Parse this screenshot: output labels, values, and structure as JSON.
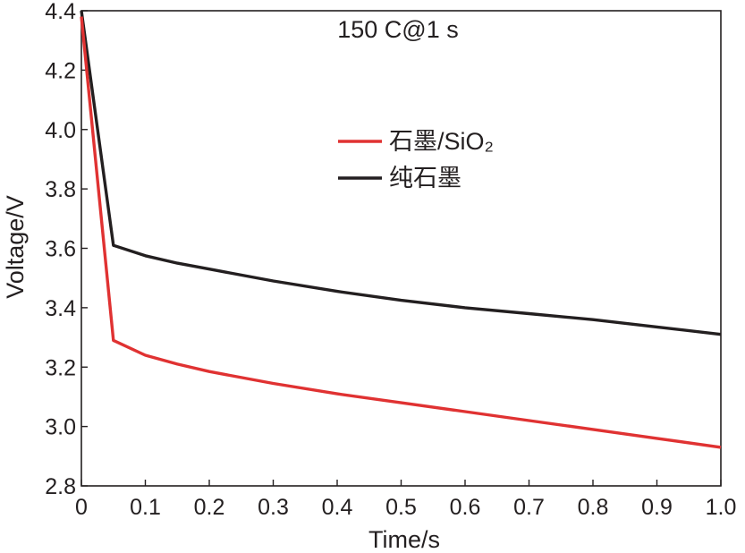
{
  "chart_data": {
    "type": "line",
    "annotation": "150 C@1 s",
    "xlabel": "Time/s",
    "ylabel": "Voltage/V",
    "xlim": [
      0,
      1.0
    ],
    "ylim": [
      2.8,
      4.4
    ],
    "x_ticks": [
      0,
      0.1,
      0.2,
      0.3,
      0.4,
      0.5,
      0.6,
      0.7,
      0.8,
      0.9,
      1.0
    ],
    "x_tick_labels": [
      "0",
      "0.1",
      "0.2",
      "0.3",
      "0.4",
      "0.5",
      "0.6",
      "0.7",
      "0.8",
      "0.9",
      "1.0"
    ],
    "y_ticks": [
      2.8,
      3.0,
      3.2,
      3.4,
      3.6,
      3.8,
      4.0,
      4.2,
      4.4
    ],
    "y_tick_labels": [
      "2.8",
      "3.0",
      "3.2",
      "3.4",
      "3.6",
      "3.8",
      "4.0",
      "4.2",
      "4.4"
    ],
    "grid": false,
    "legend_position": "center-right",
    "series": [
      {
        "name": "石墨/SiO₂",
        "color": "#e03232",
        "x": [
          0,
          0.05,
          0.1,
          0.15,
          0.2,
          0.3,
          0.4,
          0.5,
          0.6,
          0.7,
          0.8,
          0.9,
          1.0
        ],
        "y": [
          4.38,
          3.29,
          3.24,
          3.21,
          3.185,
          3.145,
          3.11,
          3.08,
          3.05,
          3.02,
          2.99,
          2.96,
          2.93
        ]
      },
      {
        "name": "纯石墨",
        "color": "#231f20",
        "x": [
          0,
          0.05,
          0.1,
          0.15,
          0.2,
          0.3,
          0.4,
          0.5,
          0.6,
          0.7,
          0.8,
          0.9,
          1.0
        ],
        "y": [
          4.4,
          3.61,
          3.575,
          3.55,
          3.53,
          3.49,
          3.455,
          3.425,
          3.4,
          3.38,
          3.36,
          3.335,
          3.31
        ]
      }
    ]
  }
}
